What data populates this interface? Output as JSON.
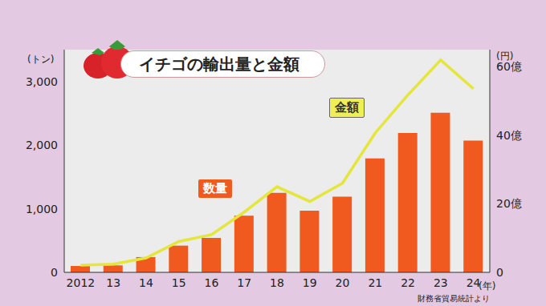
{
  "chart_data": {
    "type": "bar",
    "title": "イチゴの輸出量と金額",
    "categories": [
      "2012",
      "13",
      "14",
      "15",
      "16",
      "17",
      "18",
      "19",
      "20",
      "21",
      "22",
      "23",
      "24"
    ],
    "x_label": "(年)",
    "y_label": "(トン)",
    "y2_label": "(円)",
    "source": "財務省貿易統計より",
    "series": [
      {
        "name": "数量",
        "type": "bar",
        "color": "#f05a1e",
        "values": [
          100,
          110,
          240,
          420,
          540,
          890,
          1250,
          970,
          1190,
          1790,
          2190,
          2510,
          2070
        ]
      },
      {
        "name": "金額",
        "type": "line",
        "axis": "y2",
        "color": "#e4e63c",
        "marker": "none",
        "values": [
          210000000,
          240000000,
          420000000,
          900000000,
          1100000000,
          1760000000,
          2500000000,
          2070000000,
          2600000000,
          4070000000,
          5180000000,
          6200000000,
          5360000000
        ]
      }
    ],
    "ylim": [
      0,
      3500
    ],
    "yticks": [
      0,
      {
        "value": 1000,
        "label": "1,000"
      },
      {
        "value": 2000,
        "label": "2,000"
      },
      {
        "value": 3000,
        "label": "3,000"
      }
    ],
    "y2lim": [
      0,
      6500000000
    ],
    "y2ticks": [
      0,
      {
        "value": 2000000000,
        "label": "20億"
      },
      {
        "value": 4000000000,
        "label": "40億"
      },
      {
        "value": 6000000000,
        "label": "60億"
      }
    ],
    "grid": false
  }
}
